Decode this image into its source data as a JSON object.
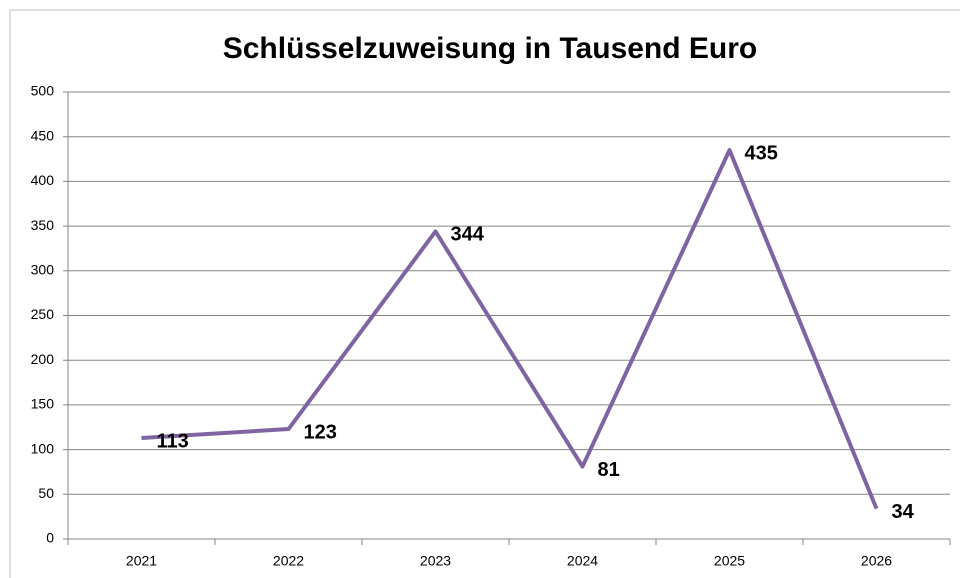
{
  "chart_data": {
    "type": "line",
    "title": "Schlüsselzuweisung in Tausend Euro",
    "categories": [
      "2021",
      "2022",
      "2023",
      "2024",
      "2025",
      "2026"
    ],
    "values": [
      113,
      123,
      344,
      81,
      435,
      34
    ],
    "color": "#8064a2",
    "ylim": [
      0,
      500
    ],
    "yticks": [
      0,
      50,
      100,
      150,
      200,
      250,
      300,
      350,
      400,
      450,
      500
    ],
    "grid": true
  }
}
